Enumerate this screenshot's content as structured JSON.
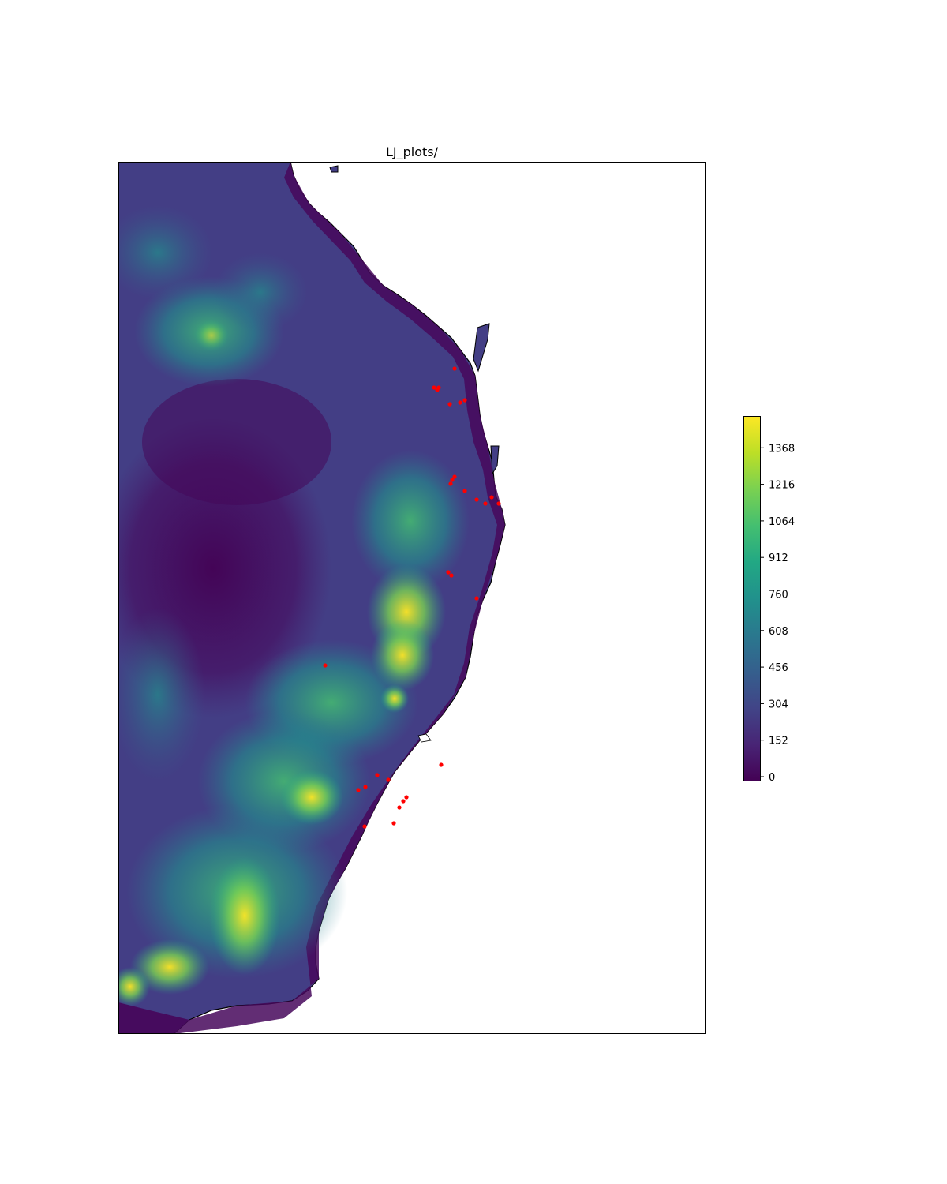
{
  "title": "LJ_plots/",
  "map": {
    "type": "elevation raster",
    "colormap": "viridis",
    "land_edge_color": "#000000",
    "ocean_color": "#ffffff",
    "marker_color": "#ff0000",
    "marker_count": 38
  },
  "colorbar": {
    "range": [
      0,
      1520
    ],
    "ticks": [
      0,
      152,
      304,
      456,
      608,
      760,
      912,
      1064,
      1216,
      1368
    ],
    "tick_labels": [
      "0",
      "152",
      "304",
      "456",
      "608",
      "760",
      "912",
      "1064",
      "1216",
      "1368"
    ],
    "colors": [
      "#440154",
      "#482475",
      "#414487",
      "#355f8d",
      "#2a788e",
      "#21918c",
      "#22a884",
      "#44bf70",
      "#7ad151",
      "#bddf26",
      "#fde725"
    ]
  }
}
